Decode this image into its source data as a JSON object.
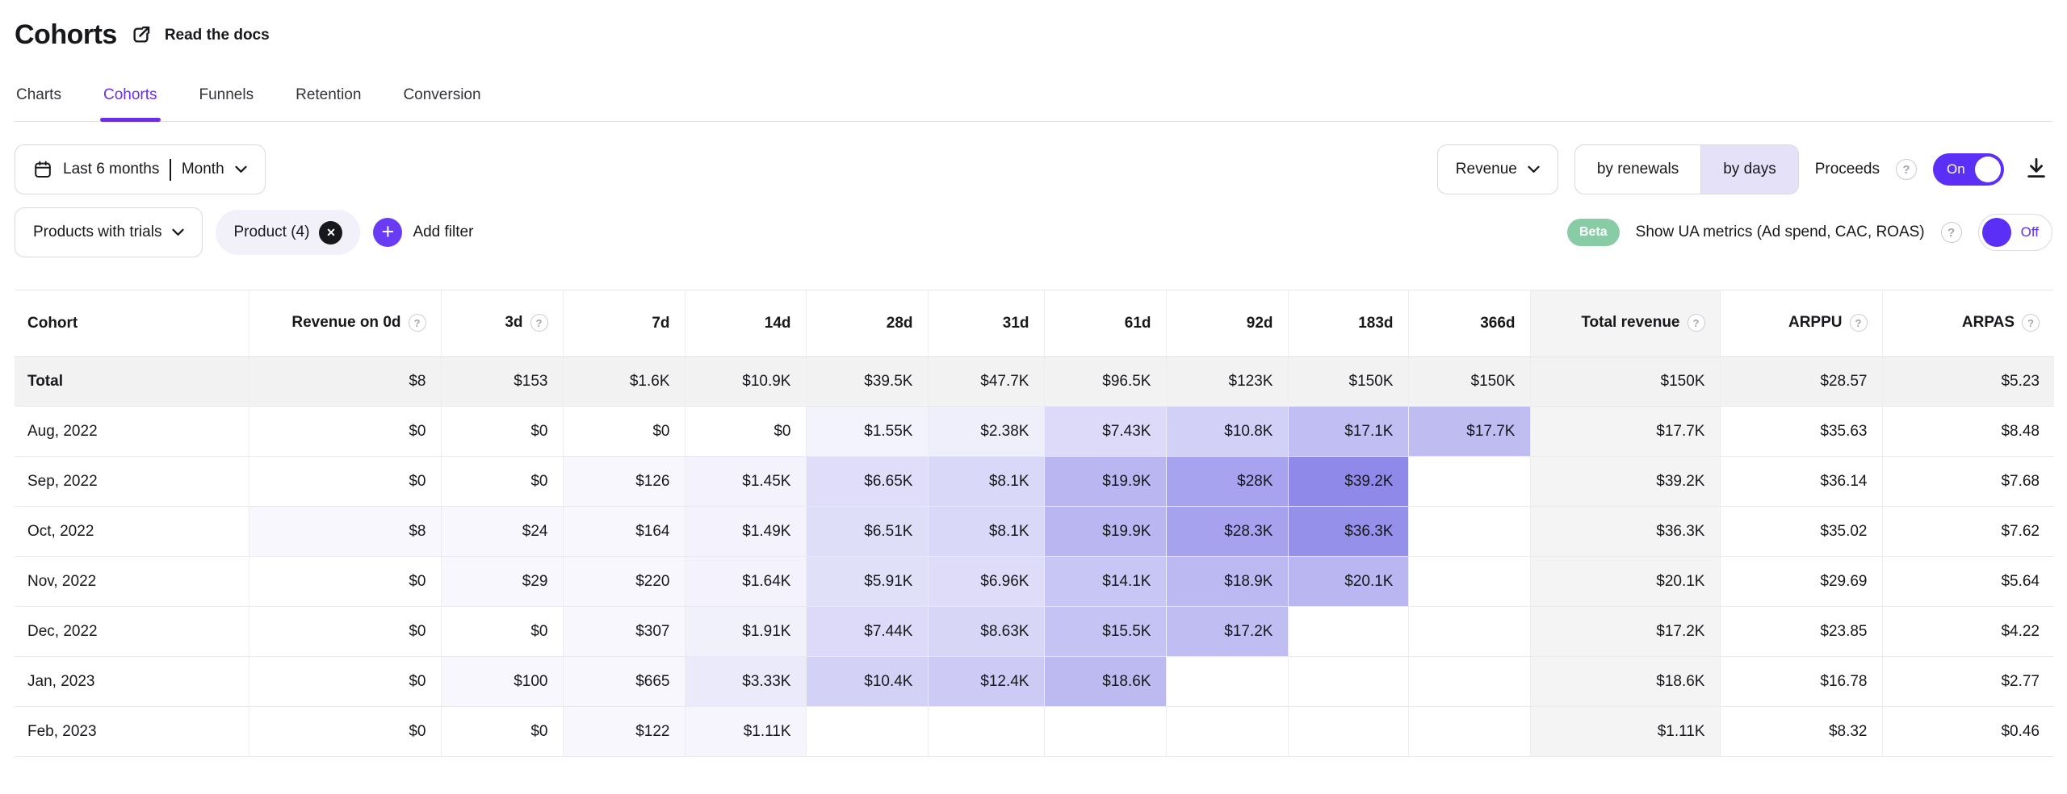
{
  "header": {
    "title": "Cohorts",
    "docs_link": "Read the docs"
  },
  "tabs": {
    "items": [
      {
        "label": "Charts"
      },
      {
        "label": "Cohorts"
      },
      {
        "label": "Funnels"
      },
      {
        "label": "Retention"
      },
      {
        "label": "Conversion"
      }
    ],
    "active": "Cohorts"
  },
  "filters": {
    "date_range": {
      "range_label": "Last 6 months",
      "granularity": "Month"
    },
    "segment_dropdown": "Products with trials",
    "product_chip": "Product (4)",
    "add_filter_label": "Add filter"
  },
  "controls": {
    "metric_dropdown": "Revenue",
    "view_segments": [
      "by renewals",
      "by days"
    ],
    "selected_view": "by days",
    "proceeds_label": "Proceeds",
    "proceeds_state": "On",
    "beta_badge": "Beta",
    "ua_metrics_label": "Show UA metrics (Ad spend, CAC, ROAS)",
    "ua_state": "Off"
  },
  "table": {
    "heat_max": 39200,
    "columns": [
      {
        "label": "Cohort",
        "help": false,
        "kind": "cohort"
      },
      {
        "label": "Revenue on 0d",
        "help": true,
        "kind": "day"
      },
      {
        "label": "3d",
        "help": true,
        "kind": "day"
      },
      {
        "label": "7d",
        "help": false,
        "kind": "day"
      },
      {
        "label": "14d",
        "help": false,
        "kind": "day"
      },
      {
        "label": "28d",
        "help": false,
        "kind": "day"
      },
      {
        "label": "31d",
        "help": false,
        "kind": "day"
      },
      {
        "label": "61d",
        "help": false,
        "kind": "day"
      },
      {
        "label": "92d",
        "help": false,
        "kind": "day"
      },
      {
        "label": "183d",
        "help": false,
        "kind": "day"
      },
      {
        "label": "366d",
        "help": false,
        "kind": "day"
      },
      {
        "label": "Total revenue",
        "help": true,
        "kind": "total"
      },
      {
        "label": "ARPPU",
        "help": true,
        "kind": "metric"
      },
      {
        "label": "ARPAS",
        "help": true,
        "kind": "metric"
      }
    ],
    "rows": [
      {
        "cohort": "Total",
        "is_total": true,
        "days": [
          "$8",
          "$153",
          "$1.6K",
          "$10.9K",
          "$39.5K",
          "$47.7K",
          "$96.5K",
          "$123K",
          "$150K",
          "$150K"
        ],
        "heat": [
          null,
          null,
          null,
          null,
          null,
          null,
          null,
          null,
          null,
          null
        ],
        "total": "$150K",
        "arppu": "$28.57",
        "arpas": "$5.23"
      },
      {
        "cohort": "Aug, 2022",
        "is_total": false,
        "days": [
          "$0",
          "$0",
          "$0",
          "$0",
          "$1.55K",
          "$2.38K",
          "$7.43K",
          "$10.8K",
          "$17.1K",
          "$17.7K"
        ],
        "heat": [
          0,
          0,
          0,
          0,
          1550,
          2380,
          7430,
          10800,
          17100,
          17700
        ],
        "total": "$17.7K",
        "arppu": "$35.63",
        "arpas": "$8.48"
      },
      {
        "cohort": "Sep, 2022",
        "is_total": false,
        "days": [
          "$0",
          "$0",
          "$126",
          "$1.45K",
          "$6.65K",
          "$8.1K",
          "$19.9K",
          "$28K",
          "$39.2K",
          null
        ],
        "heat": [
          0,
          0,
          126,
          1450,
          6650,
          8100,
          19900,
          28000,
          39200,
          null
        ],
        "total": "$39.2K",
        "arppu": "$36.14",
        "arpas": "$7.68"
      },
      {
        "cohort": "Oct, 2022",
        "is_total": false,
        "days": [
          "$8",
          "$24",
          "$164",
          "$1.49K",
          "$6.51K",
          "$8.1K",
          "$19.9K",
          "$28.3K",
          "$36.3K",
          null
        ],
        "heat": [
          8,
          24,
          164,
          1490,
          6510,
          8100,
          19900,
          28300,
          36300,
          null
        ],
        "total": "$36.3K",
        "arppu": "$35.02",
        "arpas": "$7.62"
      },
      {
        "cohort": "Nov, 2022",
        "is_total": false,
        "days": [
          "$0",
          "$29",
          "$220",
          "$1.64K",
          "$5.91K",
          "$6.96K",
          "$14.1K",
          "$18.9K",
          "$20.1K",
          null
        ],
        "heat": [
          0,
          29,
          220,
          1640,
          5910,
          6960,
          14100,
          18900,
          20100,
          null
        ],
        "total": "$20.1K",
        "arppu": "$29.69",
        "arpas": "$5.64"
      },
      {
        "cohort": "Dec, 2022",
        "is_total": false,
        "days": [
          "$0",
          "$0",
          "$307",
          "$1.91K",
          "$7.44K",
          "$8.63K",
          "$15.5K",
          "$17.2K",
          null,
          null
        ],
        "heat": [
          0,
          0,
          307,
          1910,
          7440,
          8630,
          15500,
          17200,
          null,
          null
        ],
        "total": "$17.2K",
        "arppu": "$23.85",
        "arpas": "$4.22"
      },
      {
        "cohort": "Jan, 2023",
        "is_total": false,
        "days": [
          "$0",
          "$100",
          "$665",
          "$3.33K",
          "$10.4K",
          "$12.4K",
          "$18.6K",
          null,
          null,
          null
        ],
        "heat": [
          0,
          100,
          665,
          3330,
          10400,
          12400,
          18600,
          null,
          null,
          null
        ],
        "total": "$18.6K",
        "arppu": "$16.78",
        "arpas": "$2.77"
      },
      {
        "cohort": "Feb, 2023",
        "is_total": false,
        "days": [
          "$0",
          "$0",
          "$122",
          "$1.11K",
          null,
          null,
          null,
          null,
          null,
          null
        ],
        "heat": [
          0,
          0,
          122,
          1110,
          null,
          null,
          null,
          null,
          null,
          null
        ],
        "total": "$1.11K",
        "arppu": "$8.32",
        "arpas": "$0.46"
      }
    ]
  },
  "colors": {
    "accent_purple": "#6B2FE8",
    "toggle_purple": "#5B2FF5",
    "heat_max_color": "#8F8AE9",
    "selected_segment_bg": "#E5E1F9",
    "beta_green": "#87CCA4",
    "total_row_bg": "#F2F2F3",
    "total_col_bg": "#F4F4F5"
  }
}
